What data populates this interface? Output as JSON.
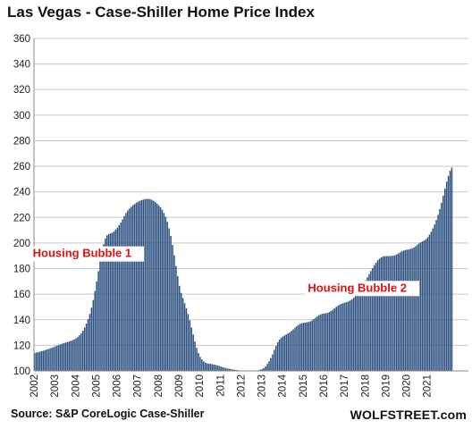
{
  "chart_data": {
    "type": "bar",
    "title": "Las Vegas - Case-Shiller Home Price Index",
    "source": "Source: S&P CoreLogic Case-Shiller",
    "brand": "WOLFSTREET.com",
    "bar_color": "#2a4f7f",
    "annotation_color": "#e01010",
    "grid": true,
    "ylim": [
      100,
      360
    ],
    "yticks": [
      100,
      120,
      140,
      160,
      180,
      200,
      220,
      240,
      260,
      280,
      300,
      320,
      340,
      360
    ],
    "year_labels": [
      "2002",
      "2003",
      "2004",
      "2005",
      "2006",
      "2007",
      "2008",
      "2009",
      "2010",
      "2011",
      "2012",
      "2013",
      "2014",
      "2015",
      "2016",
      "2017",
      "2018",
      "2019",
      "2020",
      "2021"
    ],
    "start": "2002-01",
    "frequency": "monthly",
    "annotations": [
      {
        "text": "Housing Bubble 1",
        "year": 2002.2,
        "value": 189
      },
      {
        "text": "Housing Bubble 2",
        "year": 2015.5,
        "value": 162
      }
    ],
    "values": [
      114.0,
      114.3,
      114.6,
      115.0,
      115.4,
      115.8,
      116.2,
      116.7,
      117.1,
      117.6,
      118.1,
      118.6,
      119.2,
      119.7,
      120.3,
      120.8,
      121.3,
      121.8,
      122.2,
      122.6,
      123.0,
      123.5,
      124.0,
      124.7,
      125.5,
      126.5,
      127.8,
      129.5,
      131.5,
      134.0,
      137.0,
      140.5,
      144.5,
      149.5,
      155.5,
      162.5,
      170.0,
      178.0,
      186.0,
      193.0,
      199.0,
      203.5,
      206.0,
      207.0,
      207.5,
      208.0,
      209.0,
      210.5,
      212.0,
      214.0,
      216.0,
      218.5,
      221.0,
      223.5,
      225.5,
      227.0,
      228.3,
      229.5,
      230.5,
      231.5,
      232.3,
      233.0,
      233.5,
      234.0,
      234.3,
      234.5,
      234.5,
      234.3,
      233.8,
      233.0,
      232.0,
      230.8,
      229.5,
      228.0,
      226.0,
      223.5,
      220.5,
      216.5,
      211.5,
      205.5,
      198.5,
      190.5,
      182.0,
      174.0,
      166.5,
      161.0,
      157.0,
      153.0,
      149.0,
      144.5,
      139.5,
      134.0,
      128.5,
      123.0,
      118.0,
      114.0,
      111.0,
      109.0,
      107.5,
      106.5,
      106.0,
      105.7,
      105.5,
      105.3,
      105.0,
      104.7,
      104.3,
      104.0,
      103.5,
      103.0,
      102.6,
      102.2,
      101.9,
      101.6,
      101.3,
      101.1,
      100.9,
      100.7,
      100.5,
      100.3,
      100.1,
      100.0,
      99.9,
      99.8,
      99.7,
      99.7,
      99.7,
      99.8,
      100.0,
      100.3,
      100.6,
      101.0,
      101.5,
      102.3,
      103.5,
      105.5,
      107.5,
      110.0,
      113.0,
      116.5,
      119.5,
      122.5,
      124.5,
      126.0,
      127.0,
      127.8,
      128.5,
      129.3,
      130.2,
      131.3,
      132.5,
      133.8,
      135.0,
      136.0,
      136.8,
      137.3,
      137.6,
      137.8,
      138.0,
      138.3,
      138.8,
      139.5,
      140.5,
      141.6,
      142.7,
      143.6,
      144.3,
      144.7,
      144.9,
      145.1,
      145.5,
      146.1,
      146.9,
      147.9,
      149.0,
      150.1,
      151.1,
      151.9,
      152.5,
      153.0,
      153.4,
      153.8,
      154.4,
      155.1,
      156.0,
      157.1,
      158.4,
      160.0,
      161.9,
      164.0,
      166.2,
      168.5,
      170.9,
      173.3,
      175.7,
      178.1,
      180.4,
      182.6,
      184.6,
      186.4,
      187.8,
      188.8,
      189.4,
      189.7,
      189.8,
      189.8,
      189.8,
      189.9,
      190.1,
      190.5,
      191.1,
      191.9,
      192.7,
      193.5,
      194.1,
      194.5,
      194.8,
      195.0,
      195.3,
      195.8,
      196.5,
      197.5,
      198.6,
      199.7,
      200.6,
      201.3,
      202.0,
      203.0,
      204.5,
      206.5,
      208.8,
      211.5,
      214.5,
      218.0,
      222.0,
      226.5,
      231.5,
      237.0,
      242.5,
      248.0,
      252.5,
      256.5,
      259.0
    ]
  }
}
